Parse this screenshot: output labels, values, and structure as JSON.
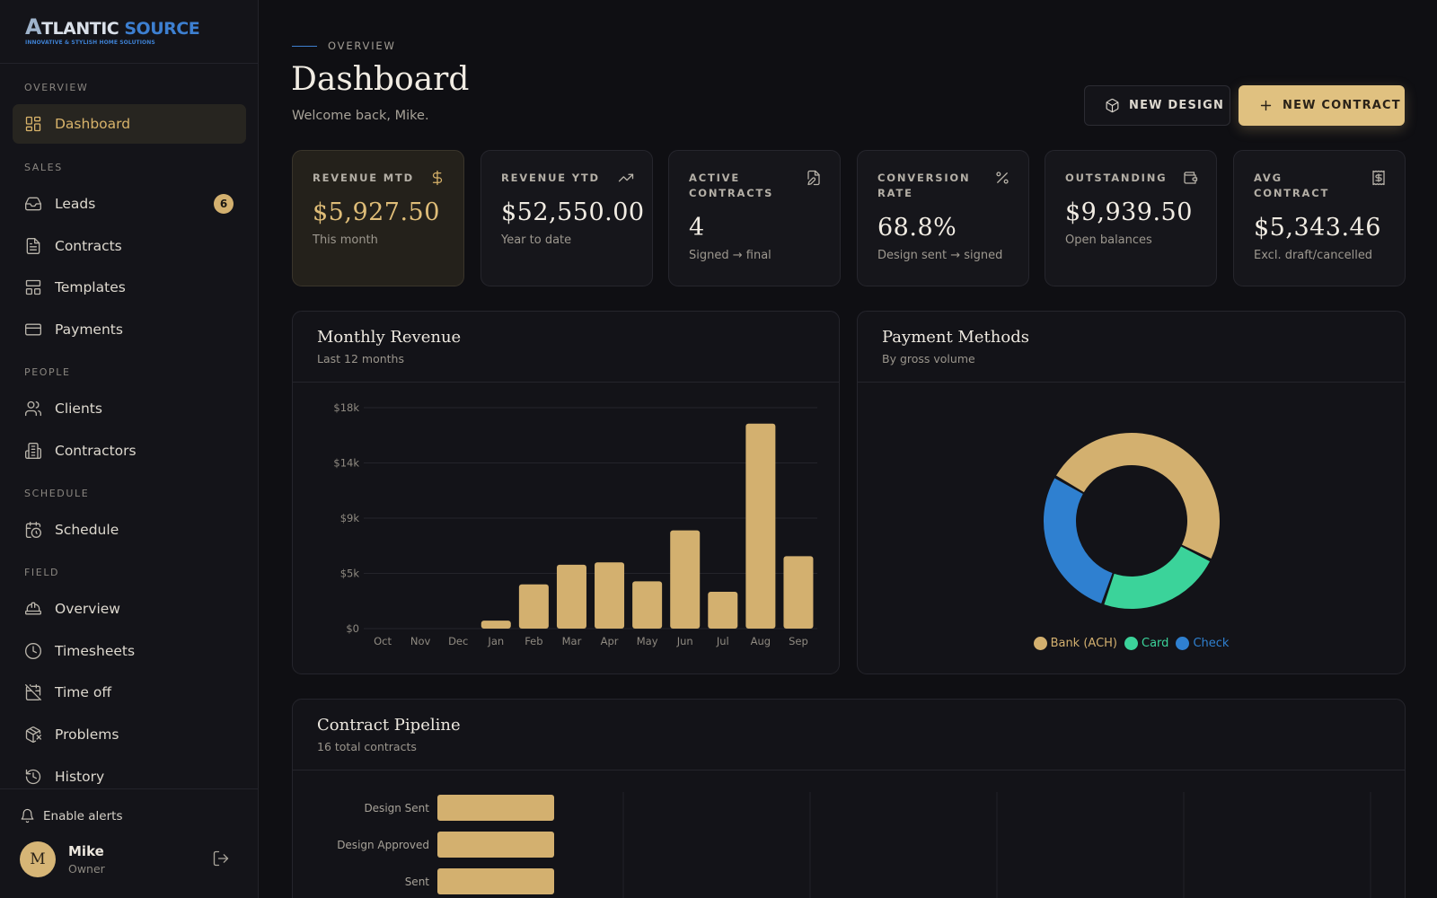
{
  "brand": {
    "letter": "A",
    "word1": "TLANTIC",
    "word2": "SOURCE",
    "tagline": "INNOVATIVE & STYLISH HOME SOLUTIONS"
  },
  "sidebar": {
    "sections": [
      {
        "label": "OVERVIEW",
        "items": [
          {
            "label": "Dashboard",
            "icon": "grid-icon",
            "active": true
          }
        ]
      },
      {
        "label": "SALES",
        "items": [
          {
            "label": "Leads",
            "icon": "inbox-icon",
            "badge": "6"
          },
          {
            "label": "Contracts",
            "icon": "document-icon"
          },
          {
            "label": "Templates",
            "icon": "layout-icon"
          },
          {
            "label": "Payments",
            "icon": "credit-card-icon"
          }
        ]
      },
      {
        "label": "PEOPLE",
        "items": [
          {
            "label": "Clients",
            "icon": "users-icon"
          },
          {
            "label": "Contractors",
            "icon": "building-icon"
          }
        ]
      },
      {
        "label": "SCHEDULE",
        "items": [
          {
            "label": "Schedule",
            "icon": "calendar-clock-icon"
          }
        ]
      },
      {
        "label": "FIELD",
        "items": [
          {
            "label": "Overview",
            "icon": "hard-hat-icon"
          },
          {
            "label": "Timesheets",
            "icon": "clock-icon"
          },
          {
            "label": "Time off",
            "icon": "calendar-off-icon"
          },
          {
            "label": "Problems",
            "icon": "package-x-icon"
          },
          {
            "label": "History",
            "icon": "history-icon"
          }
        ]
      }
    ],
    "alerts_label": "Enable alerts",
    "user": {
      "initial": "M",
      "name": "Mike",
      "role": "Owner"
    }
  },
  "header": {
    "eyebrow": "OVERVIEW",
    "title": "Dashboard",
    "welcome": "Welcome back, Mike.",
    "new_design": "NEW DESIGN",
    "new_contract": "NEW CONTRACT"
  },
  "kpis": [
    {
      "label": "REVENUE MTD",
      "value": "$5,927.50",
      "sub": "This month",
      "icon": "dollar-icon"
    },
    {
      "label": "REVENUE YTD",
      "value": "$52,550.00",
      "sub": "Year to date",
      "icon": "trending-up-icon"
    },
    {
      "label": "ACTIVE CONTRACTS",
      "value": "4",
      "sub": "Signed → final",
      "icon": "file-edit-icon"
    },
    {
      "label": "CONVERSION RATE",
      "value": "68.8%",
      "sub": "Design sent → signed",
      "icon": "percent-icon"
    },
    {
      "label": "OUTSTANDING",
      "value": "$9,939.50",
      "sub": "Open balances",
      "icon": "wallet-icon"
    },
    {
      "label": "AVG CONTRACT",
      "value": "$5,343.46",
      "sub": "Excl. draft/cancelled",
      "icon": "receipt-icon"
    }
  ],
  "revenue_panel": {
    "title": "Monthly Revenue",
    "subtitle": "Last 12 months"
  },
  "payment_panel": {
    "title": "Payment Methods",
    "subtitle": "By gross volume"
  },
  "pipeline_panel": {
    "title": "Contract Pipeline",
    "subtitle": "16 total contracts"
  },
  "colors": {
    "gold": "#d3b06f",
    "green": "#3bd39a",
    "blue": "#2f80d0"
  },
  "chart_data": [
    {
      "type": "bar",
      "title": "Monthly Revenue",
      "subtitle": "Last 12 months",
      "categories": [
        "Oct",
        "Nov",
        "Dec",
        "Jan",
        "Feb",
        "Mar",
        "Apr",
        "May",
        "Jun",
        "Jul",
        "Aug",
        "Sep"
      ],
      "values": [
        0,
        0,
        0,
        650,
        3600,
        5200,
        5400,
        3850,
        8000,
        3000,
        16700,
        5900
      ],
      "ylim": [
        0,
        18000
      ],
      "yticks": [
        0,
        4500,
        9000,
        13500,
        18000
      ],
      "ytick_labels": [
        "$0",
        "$5k",
        "$9k",
        "$14k",
        "$18k"
      ],
      "grid": true
    },
    {
      "type": "pie",
      "title": "Payment Methods",
      "subtitle": "By gross volume",
      "donut": true,
      "categories": [
        "Bank (ACH)",
        "Card",
        "Check"
      ],
      "values": [
        49,
        23,
        28
      ],
      "legend": "bottom"
    },
    {
      "type": "bar",
      "orientation": "horizontal",
      "title": "Contract Pipeline",
      "subtitle": "16 total contracts",
      "categories": [
        "Design Sent",
        "Design Approved",
        "Sent"
      ],
      "values": [
        2,
        2,
        2
      ],
      "grid": true
    }
  ]
}
